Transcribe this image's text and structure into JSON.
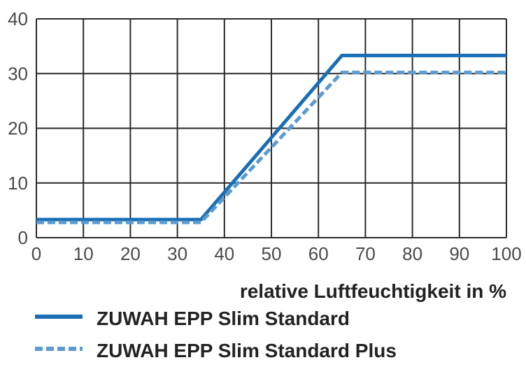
{
  "chart_data": {
    "type": "line",
    "xlabel": "relative Luftfeuchtigkeit in %",
    "ylabel": "",
    "xlim": [
      0,
      100
    ],
    "ylim": [
      0,
      40
    ],
    "x_ticks": [
      0,
      10,
      20,
      30,
      40,
      50,
      60,
      70,
      80,
      90,
      100
    ],
    "y_ticks": [
      0,
      10,
      20,
      30,
      40
    ],
    "grid": true,
    "legend_position": "bottom",
    "series": [
      {
        "name": "ZUWAH EPP Slim Standard",
        "style": "solid",
        "color": "#1a6eb3",
        "x": [
          0,
          35,
          65,
          100
        ],
        "y": [
          3.3,
          3.3,
          33.3,
          33.3
        ]
      },
      {
        "name": "ZUWAH EPP Slim Standard Plus",
        "style": "dashed",
        "color": "#5b9bd0",
        "x": [
          0,
          35,
          65,
          100
        ],
        "y": [
          2.8,
          2.8,
          30.2,
          30.2
        ]
      }
    ]
  }
}
